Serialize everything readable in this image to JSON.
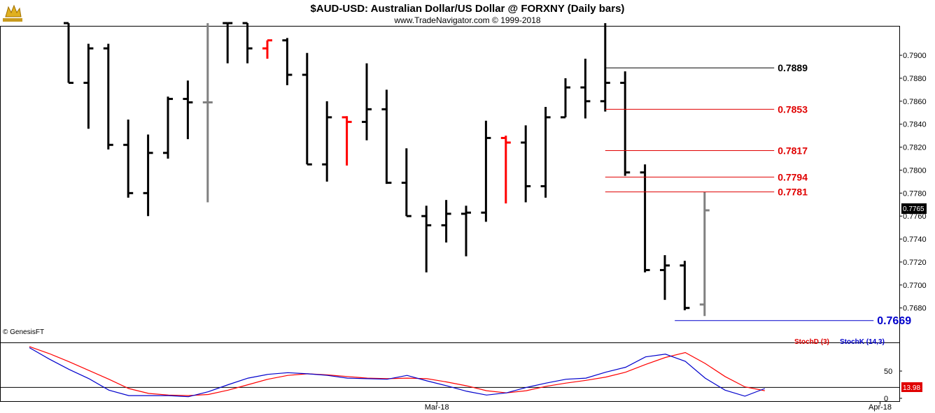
{
  "header": {
    "title": "$AUD-USD:  Australian Dollar/US Dollar @ FORXNY  (Daily bars)",
    "subtitle": "www.TradeNavigator.com © 1999-2018",
    "logo_icon": "gold-bull-icon"
  },
  "copyright": "© GenesisFT",
  "last_price_label": "0.7765",
  "stoch_value_label": "13.98",
  "legend": {
    "stoch_d": "StochD (3)",
    "stoch_k": "StochK (14,3)"
  },
  "colors": {
    "price": "#000000",
    "up_red": "#ff0000",
    "gray": "#808080",
    "level_black": "#000000",
    "level_red": "#e00000",
    "level_blue": "#0000cc",
    "stoch_d": "#ff0000",
    "stoch_k": "#0000cc"
  },
  "chart_data": {
    "type": "ohlc",
    "price_axis": {
      "ylim": [
        0.765,
        0.7925
      ],
      "ticks": [
        "0.7680",
        "0.7700",
        "0.7720",
        "0.7740",
        "0.7760",
        "0.7780",
        "0.7800",
        "0.7820",
        "0.7840",
        "0.7860",
        "0.7880",
        "0.7900"
      ]
    },
    "bars": [
      {
        "o": 0.7928,
        "h": 0.7928,
        "l": 0.7876,
        "c": 0.7876,
        "color": "black"
      },
      {
        "o": 0.7876,
        "h": 0.791,
        "l": 0.7836,
        "c": 0.7906,
        "color": "black"
      },
      {
        "o": 0.7906,
        "h": 0.791,
        "l": 0.7818,
        "c": 0.7822,
        "color": "black"
      },
      {
        "o": 0.7822,
        "h": 0.7844,
        "l": 0.7776,
        "c": 0.778,
        "color": "black"
      },
      {
        "o": 0.778,
        "h": 0.7831,
        "l": 0.776,
        "c": 0.7815,
        "color": "black"
      },
      {
        "o": 0.7815,
        "h": 0.7864,
        "l": 0.781,
        "c": 0.7862,
        "color": "black"
      },
      {
        "o": 0.7862,
        "h": 0.7878,
        "l": 0.7827,
        "c": 0.7859,
        "color": "black"
      },
      {
        "o": 0.7859,
        "h": 0.7928,
        "l": 0.7772,
        "c": 0.7859,
        "color": "gray"
      },
      {
        "o": 0.7928,
        "h": 0.7928,
        "l": 0.7893,
        "c": 0.7928,
        "color": "black"
      },
      {
        "o": 0.7928,
        "h": 0.7928,
        "l": 0.7893,
        "c": 0.7906,
        "color": "black"
      },
      {
        "o": 0.7906,
        "h": 0.7913,
        "l": 0.7897,
        "c": 0.7913,
        "color": "red"
      },
      {
        "o": 0.7913,
        "h": 0.7915,
        "l": 0.7874,
        "c": 0.7883,
        "color": "black"
      },
      {
        "o": 0.7883,
        "h": 0.7902,
        "l": 0.7805,
        "c": 0.7805,
        "color": "black"
      },
      {
        "o": 0.7805,
        "h": 0.786,
        "l": 0.779,
        "c": 0.7846,
        "color": "black"
      },
      {
        "o": 0.7846,
        "h": 0.7847,
        "l": 0.7804,
        "c": 0.7842,
        "color": "red"
      },
      {
        "o": 0.7842,
        "h": 0.7893,
        "l": 0.7826,
        "c": 0.7853,
        "color": "black"
      },
      {
        "o": 0.7853,
        "h": 0.787,
        "l": 0.7788,
        "c": 0.7789,
        "color": "black"
      },
      {
        "o": 0.7789,
        "h": 0.7819,
        "l": 0.776,
        "c": 0.776,
        "color": "black"
      },
      {
        "o": 0.776,
        "h": 0.7769,
        "l": 0.7711,
        "c": 0.7752,
        "color": "black"
      },
      {
        "o": 0.7752,
        "h": 0.7774,
        "l": 0.7737,
        "c": 0.7762,
        "color": "black"
      },
      {
        "o": 0.7762,
        "h": 0.7769,
        "l": 0.7725,
        "c": 0.7763,
        "color": "black"
      },
      {
        "o": 0.7763,
        "h": 0.7843,
        "l": 0.7755,
        "c": 0.7828,
        "color": "black"
      },
      {
        "o": 0.7828,
        "h": 0.783,
        "l": 0.7771,
        "c": 0.7824,
        "color": "red"
      },
      {
        "o": 0.7824,
        "h": 0.7839,
        "l": 0.7772,
        "c": 0.7786,
        "color": "black"
      },
      {
        "o": 0.7786,
        "h": 0.7855,
        "l": 0.7776,
        "c": 0.7846,
        "color": "black"
      },
      {
        "o": 0.7846,
        "h": 0.788,
        "l": 0.7846,
        "c": 0.7872,
        "color": "black"
      },
      {
        "o": 0.7872,
        "h": 0.7897,
        "l": 0.7845,
        "c": 0.786,
        "color": "black"
      },
      {
        "o": 0.786,
        "h": 0.7928,
        "l": 0.7851,
        "c": 0.7876,
        "color": "black"
      },
      {
        "o": 0.7876,
        "h": 0.7886,
        "l": 0.7795,
        "c": 0.7798,
        "color": "black"
      },
      {
        "o": 0.7798,
        "h": 0.7805,
        "l": 0.7711,
        "c": 0.7713,
        "color": "black"
      },
      {
        "o": 0.7713,
        "h": 0.7726,
        "l": 0.7687,
        "c": 0.7717,
        "color": "black"
      },
      {
        "o": 0.7717,
        "h": 0.7721,
        "l": 0.7678,
        "c": 0.768,
        "color": "black"
      },
      {
        "o": 0.7683,
        "h": 0.7781,
        "l": 0.7673,
        "c": 0.7765,
        "color": "gray"
      }
    ],
    "levels": [
      {
        "value": 0.7889,
        "label": "0.7889",
        "color": "black",
        "x_from_bar": 27,
        "x_to_bar": 35.5
      },
      {
        "value": 0.7853,
        "label": "0.7853",
        "color": "red",
        "x_from_bar": 27,
        "x_to_bar": 35.5
      },
      {
        "value": 0.7817,
        "label": "0.7817",
        "color": "red",
        "x_from_bar": 27,
        "x_to_bar": 35.5
      },
      {
        "value": 0.7794,
        "label": "0.7794",
        "color": "red",
        "x_from_bar": 27,
        "x_to_bar": 35.5
      },
      {
        "value": 0.7781,
        "label": "0.7781",
        "color": "red",
        "x_from_bar": 27,
        "x_to_bar": 35.5
      },
      {
        "value": 0.7669,
        "label": "0.7669",
        "color": "blue",
        "x_from_bar": 30.5,
        "x_to_bar": 40.5
      }
    ],
    "stoch_axis": {
      "ylim": [
        0,
        100
      ],
      "ticks": [
        "50",
        "0"
      ],
      "reference_line": 20
    },
    "stochK": [
      93,
      72,
      53,
      36,
      15,
      5,
      5,
      5,
      3,
      12,
      25,
      37,
      44,
      47,
      45,
      42,
      37,
      36,
      35,
      42,
      32,
      23,
      13,
      6,
      10,
      20,
      28,
      35,
      37,
      48,
      57,
      76,
      81,
      68,
      37,
      15,
      4,
      18
    ],
    "stochD": [
      95,
      82,
      67,
      51,
      35,
      18,
      9,
      6,
      5,
      7,
      15,
      25,
      35,
      42,
      45,
      43,
      40,
      37,
      36,
      37,
      36,
      30,
      23,
      14,
      10,
      14,
      22,
      28,
      33,
      39,
      48,
      62,
      75,
      84,
      64,
      40,
      21,
      14
    ],
    "x_axis_labels": [
      {
        "label": "Mar-18",
        "bar": 20.5
      },
      {
        "label": "Apr-18",
        "bar": 42.8
      }
    ]
  }
}
